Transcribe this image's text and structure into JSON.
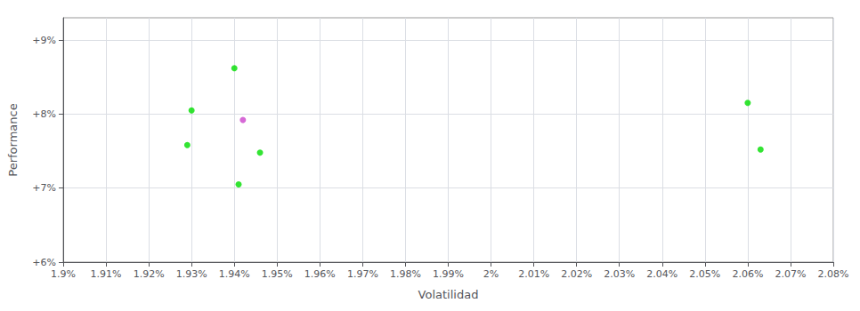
{
  "chart_data": {
    "type": "scatter",
    "xlabel": "Volatilidad",
    "ylabel": "Performance",
    "x": [
      0.0194,
      0.0193,
      0.01942,
      0.01929,
      0.01946,
      0.01941,
      0.0206,
      0.02063
    ],
    "values": [
      0.0862,
      0.0805,
      0.0792,
      0.0758,
      0.0748,
      0.0705,
      0.0815,
      0.0752
    ],
    "colors": [
      "#00dd00",
      "#00dd00",
      "#cc44cc",
      "#00dd00",
      "#00dd00",
      "#00dd00",
      "#00dd00",
      "#00dd00"
    ],
    "xlim": [
      0.019,
      0.0208
    ],
    "ylim": [
      0.06,
      0.093
    ],
    "xticks": [
      {
        "value": 0.019,
        "label": "1.9%"
      },
      {
        "value": 0.0191,
        "label": "1.91%"
      },
      {
        "value": 0.0192,
        "label": "1.92%"
      },
      {
        "value": 0.0193,
        "label": "1.93%"
      },
      {
        "value": 0.0194,
        "label": "1.94%"
      },
      {
        "value": 0.0195,
        "label": "1.95%"
      },
      {
        "value": 0.0196,
        "label": "1.96%"
      },
      {
        "value": 0.0197,
        "label": "1.97%"
      },
      {
        "value": 0.0198,
        "label": "1.98%"
      },
      {
        "value": 0.0199,
        "label": "1.99%"
      },
      {
        "value": 0.02,
        "label": "2%"
      },
      {
        "value": 0.0201,
        "label": "2.01%"
      },
      {
        "value": 0.0202,
        "label": "2.02%"
      },
      {
        "value": 0.0203,
        "label": "2.03%"
      },
      {
        "value": 0.0204,
        "label": "2.04%"
      },
      {
        "value": 0.0205,
        "label": "2.05%"
      },
      {
        "value": 0.0206,
        "label": "2.06%"
      },
      {
        "value": 0.0207,
        "label": "2.07%"
      },
      {
        "value": 0.0208,
        "label": "2.08%"
      }
    ],
    "yticks": [
      {
        "value": 0.06,
        "label": "+6%"
      },
      {
        "value": 0.07,
        "label": "+7%"
      },
      {
        "value": 0.08,
        "label": "+8%"
      },
      {
        "value": 0.09,
        "label": "+9%"
      }
    ],
    "grid": true
  }
}
